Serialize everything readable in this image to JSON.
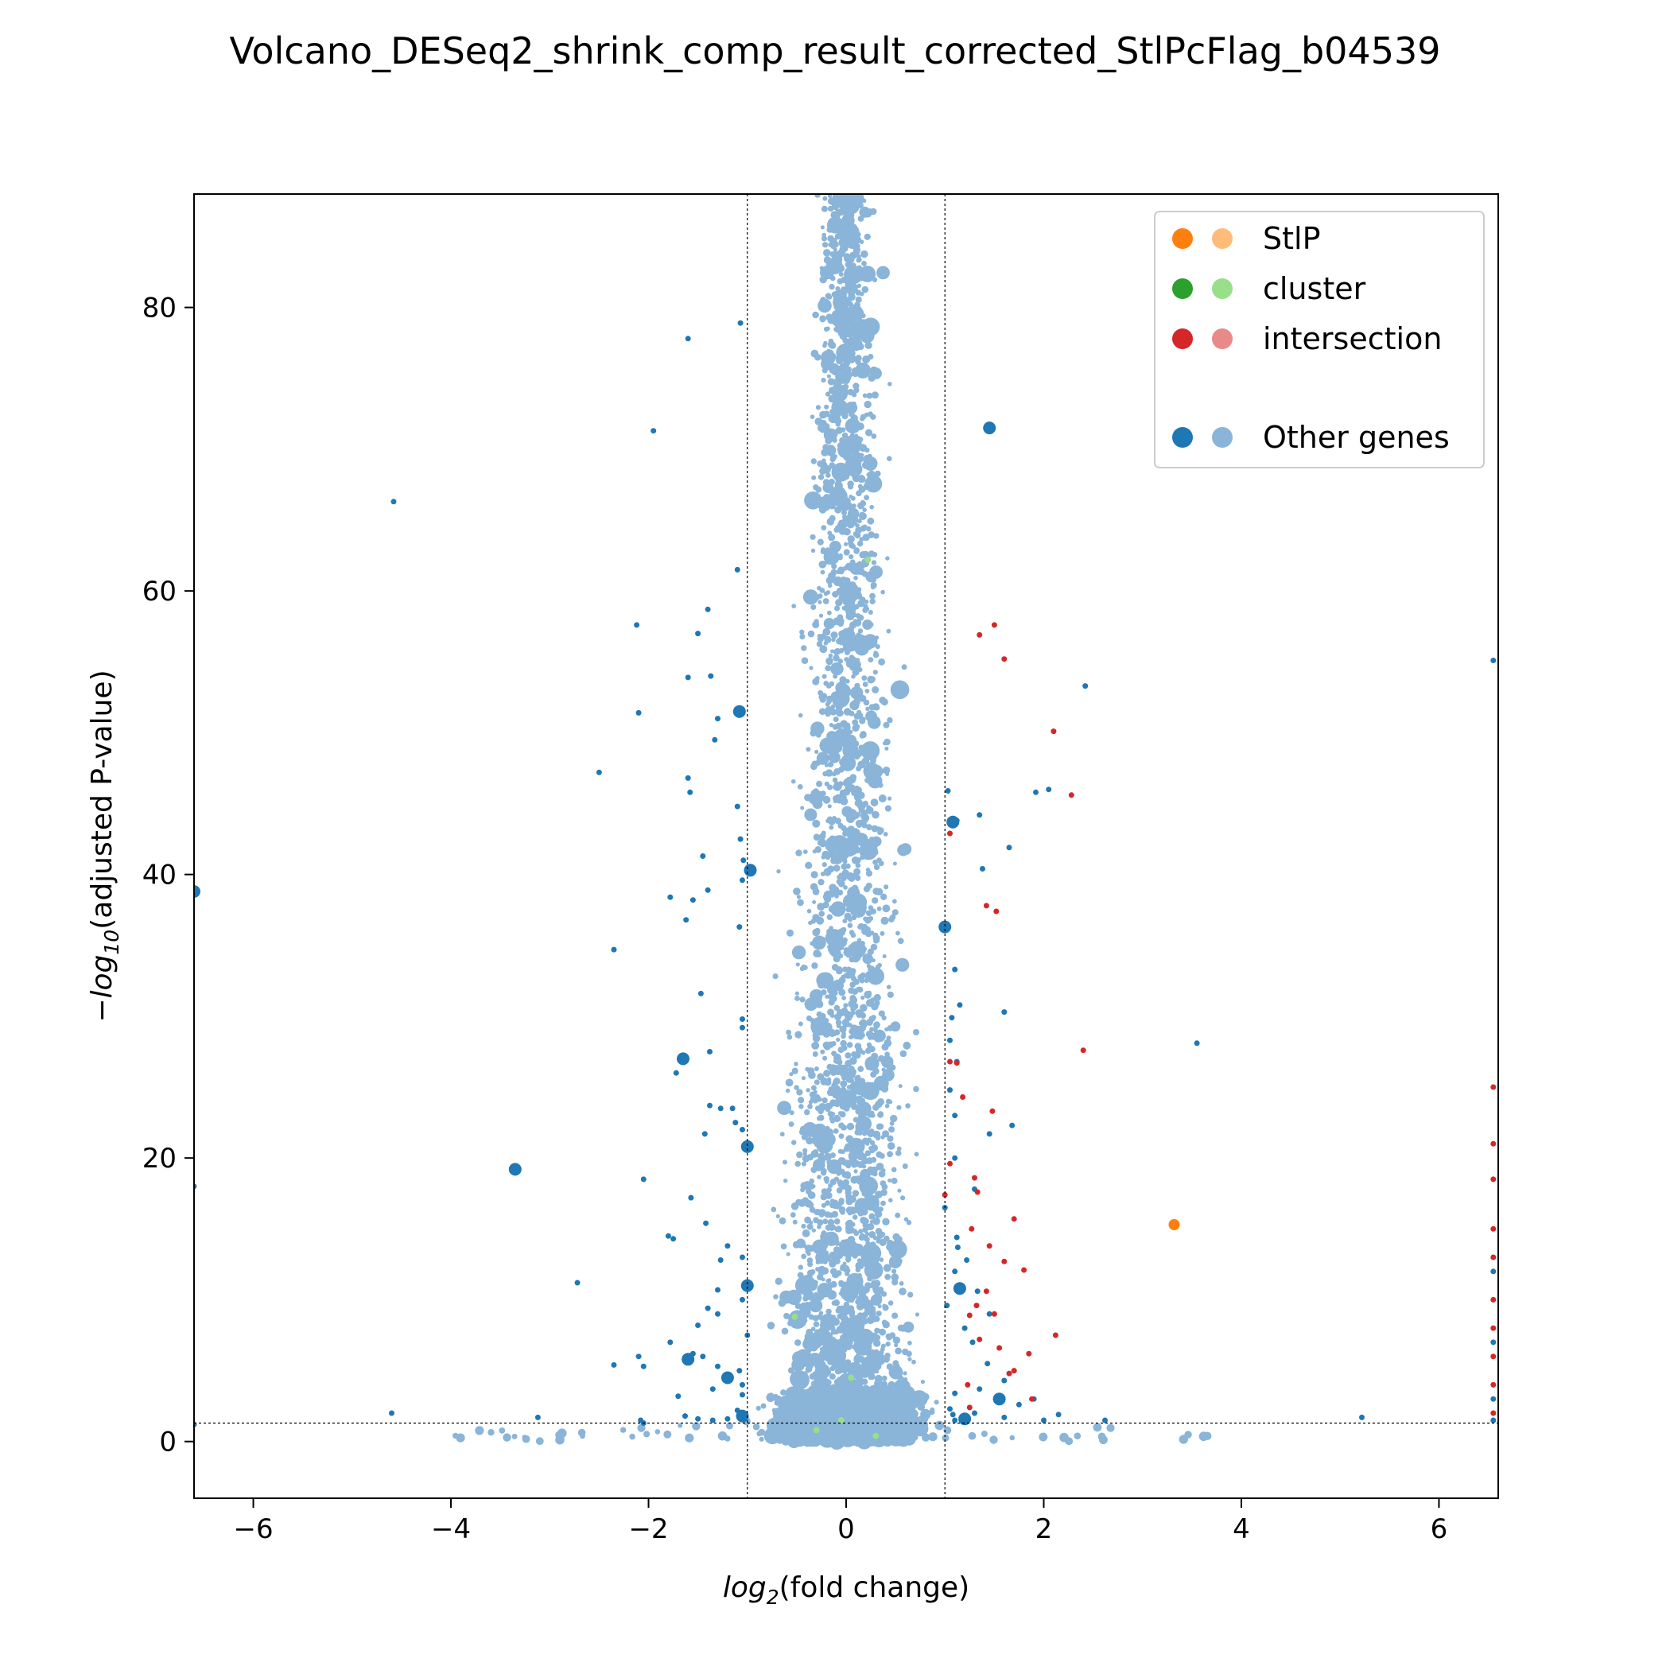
{
  "chart_data": {
    "type": "scatter",
    "title": "Volcano_DESeq2_shrink_comp_result_corrected_StlPcFlag_b04539",
    "xlabel_base": "log",
    "xlabel_sub": "2",
    "xlabel_rest": "(fold change)",
    "ylabel_prefix": "−log",
    "ylabel_sub": "10",
    "ylabel_rest": "(adjusted P-value)",
    "xlim": [
      -6.6,
      6.6
    ],
    "ylim": [
      -4,
      88
    ],
    "x_ticks": [
      -6,
      -4,
      -2,
      0,
      2,
      4,
      6
    ],
    "x_tick_labels": [
      "−6",
      "−4",
      "−2",
      "0",
      "2",
      "4",
      "6"
    ],
    "y_ticks": [
      0,
      20,
      40,
      60,
      80
    ],
    "y_tick_labels": [
      "0",
      "20",
      "40",
      "60",
      "80"
    ],
    "grid": false,
    "thresholds": {
      "fold_change_lines": [
        -1,
        1
      ],
      "pvalue_line": 1.3
    },
    "colors": {
      "StlP": [
        "#ff7f0e",
        "#ffbb78"
      ],
      "cluster": [
        "#2ca02c",
        "#98df8a"
      ],
      "intersection": [
        "#d62728",
        "#e88a8a"
      ],
      "other": [
        "#1f77b4",
        "#8ab4d8"
      ]
    },
    "legend": {
      "position": "top-right",
      "entries": [
        "StlP",
        "cluster",
        "intersection",
        "Other genes"
      ]
    },
    "series": [
      {
        "name": "StlP",
        "points": [
          [
            3.32,
            15.3
          ]
        ]
      },
      {
        "name": "cluster",
        "points": [
          [
            0.22,
            62.2
          ],
          [
            -0.52,
            8.8
          ],
          [
            0.05,
            4.5
          ],
          [
            -0.3,
            0.8
          ],
          [
            0.3,
            0.4
          ],
          [
            -0.05,
            1.5
          ]
        ]
      },
      {
        "name": "intersection",
        "points": [
          [
            1.35,
            56.9
          ],
          [
            1.5,
            57.6
          ],
          [
            1.6,
            55.2
          ],
          [
            2.1,
            50.1
          ],
          [
            2.28,
            45.6
          ],
          [
            1.05,
            42.9
          ],
          [
            1.42,
            37.8
          ],
          [
            1.52,
            37.4
          ],
          [
            2.4,
            27.6
          ],
          [
            1.05,
            26.8
          ],
          [
            1.12,
            26.7
          ],
          [
            1.18,
            24.3
          ],
          [
            1.48,
            23.3
          ],
          [
            1.05,
            19.6
          ],
          [
            1.3,
            18.6
          ],
          [
            1.0,
            17.4
          ],
          [
            1.33,
            17.6
          ],
          [
            1.7,
            15.7
          ],
          [
            1.27,
            15.0
          ],
          [
            1.45,
            13.8
          ],
          [
            1.6,
            12.7
          ],
          [
            1.8,
            12.1
          ],
          [
            1.42,
            10.6
          ],
          [
            1.32,
            9.6
          ],
          [
            1.5,
            9.0
          ],
          [
            1.25,
            8.9
          ],
          [
            1.35,
            7.2
          ],
          [
            1.55,
            6.6
          ],
          [
            2.12,
            7.5
          ],
          [
            1.85,
            6.2
          ],
          [
            1.7,
            5.0
          ],
          [
            1.88,
            3.0
          ],
          [
            1.25,
            2.4
          ],
          [
            1.65,
            4.8
          ],
          [
            1.23,
            4.0
          ],
          [
            6.55,
            25.0
          ],
          [
            6.55,
            21.0
          ],
          [
            6.55,
            18.5
          ],
          [
            6.55,
            15.0
          ],
          [
            6.55,
            13.0
          ],
          [
            6.55,
            10.0
          ],
          [
            6.55,
            8.0
          ],
          [
            6.55,
            6.0
          ],
          [
            6.55,
            4.0
          ],
          [
            6.55,
            2.0
          ]
        ]
      },
      {
        "name": "Other genes",
        "points": [
          [
            -4.58,
            66.3
          ],
          [
            -1.95,
            71.3
          ],
          [
            -1.07,
            78.9
          ],
          [
            -1.6,
            77.8
          ],
          [
            1.45,
            71.5
          ],
          [
            -2.12,
            57.6
          ],
          [
            -2.1,
            51.4
          ],
          [
            -2.5,
            47.2
          ],
          [
            -1.5,
            57.0
          ],
          [
            -1.4,
            58.7
          ],
          [
            -1.37,
            54.0
          ],
          [
            -1.1,
            61.5
          ],
          [
            -1.6,
            53.9
          ],
          [
            -1.08,
            51.5
          ],
          [
            -1.33,
            49.5
          ],
          [
            -1.6,
            46.8
          ],
          [
            -1.58,
            45.8
          ],
          [
            -1.3,
            51.0
          ],
          [
            2.42,
            53.3
          ],
          [
            1.92,
            45.8
          ],
          [
            2.05,
            46.0
          ],
          [
            1.03,
            45.9
          ],
          [
            1.08,
            43.7
          ],
          [
            1.12,
            43.8
          ],
          [
            1.35,
            44.2
          ],
          [
            1.38,
            40.4
          ],
          [
            1.65,
            41.9
          ],
          [
            -1.07,
            42.5
          ],
          [
            -1.45,
            41.3
          ],
          [
            -1.1,
            44.8
          ],
          [
            -1.04,
            41.0
          ],
          [
            -0.97,
            40.3
          ],
          [
            -1.05,
            39.6
          ],
          [
            -1.4,
            38.9
          ],
          [
            -1.55,
            38.2
          ],
          [
            -1.78,
            38.4
          ],
          [
            -1.62,
            36.8
          ],
          [
            -1.08,
            36.3
          ],
          [
            -2.35,
            34.7
          ],
          [
            1.1,
            33.3
          ],
          [
            1.0,
            36.3
          ],
          [
            1.6,
            30.3
          ],
          [
            1.15,
            30.8
          ],
          [
            1.07,
            29.9
          ],
          [
            3.55,
            28.1
          ],
          [
            -1.47,
            31.6
          ],
          [
            -1.05,
            29.8
          ],
          [
            -1.05,
            29.2
          ],
          [
            -1.38,
            27.5
          ],
          [
            -1.65,
            27.0
          ],
          [
            -1.72,
            26.0
          ],
          [
            1.12,
            26.8
          ],
          [
            1.05,
            28.3
          ],
          [
            -1.38,
            23.7
          ],
          [
            -1.27,
            23.5
          ],
          [
            -1.15,
            23.5
          ],
          [
            -1.12,
            22.5
          ],
          [
            -1.05,
            22.0
          ],
          [
            -1.0,
            20.8
          ],
          [
            -1.43,
            21.7
          ],
          [
            1.05,
            24.8
          ],
          [
            1.1,
            23.0
          ],
          [
            1.45,
            21.7
          ],
          [
            1.68,
            22.3
          ],
          [
            1.1,
            20.0
          ],
          [
            1.3,
            17.8
          ],
          [
            1.0,
            16.5
          ],
          [
            -3.35,
            19.2
          ],
          [
            -2.05,
            18.5
          ],
          [
            -1.57,
            17.2
          ],
          [
            -1.42,
            15.4
          ],
          [
            -1.8,
            14.5
          ],
          [
            -1.75,
            14.3
          ],
          [
            -1.2,
            13.8
          ],
          [
            -1.27,
            12.8
          ],
          [
            -1.05,
            13.0
          ],
          [
            -1.0,
            11.0
          ],
          [
            -1.3,
            10.7
          ],
          [
            -1.05,
            10.0
          ],
          [
            -1.4,
            9.4
          ],
          [
            -1.3,
            9.0
          ],
          [
            -1.0,
            7.5
          ],
          [
            -1.5,
            8.2
          ],
          [
            -1.45,
            6.0
          ],
          [
            -1.55,
            6.2
          ],
          [
            -1.6,
            5.8
          ],
          [
            -1.78,
            7.0
          ],
          [
            -2.35,
            5.4
          ],
          [
            -2.05,
            5.3
          ],
          [
            -2.1,
            6.0
          ],
          [
            -2.72,
            11.2
          ],
          [
            -1.3,
            5.3
          ],
          [
            -1.08,
            5.0
          ],
          [
            -1.05,
            4.0
          ],
          [
            -1.2,
            4.5
          ],
          [
            -1.35,
            3.7
          ],
          [
            -1.05,
            3.3
          ],
          [
            -1.7,
            3.2
          ],
          [
            1.12,
            14.4
          ],
          [
            1.13,
            13.7
          ],
          [
            1.22,
            12.8
          ],
          [
            1.1,
            12.0
          ],
          [
            1.33,
            10.6
          ],
          [
            1.15,
            10.8
          ],
          [
            1.02,
            9.6
          ],
          [
            1.45,
            9.0
          ],
          [
            1.2,
            8.0
          ],
          [
            1.28,
            7.0
          ],
          [
            1.6,
            4.3
          ],
          [
            1.43,
            5.5
          ],
          [
            1.35,
            3.7
          ],
          [
            1.1,
            3.4
          ],
          [
            1.55,
            3.0
          ],
          [
            1.75,
            2.6
          ],
          [
            1.6,
            1.7
          ],
          [
            1.9,
            3.0
          ],
          [
            2.0,
            1.5
          ],
          [
            2.15,
            1.9
          ],
          [
            2.62,
            1.5
          ],
          [
            5.22,
            1.7
          ],
          [
            -4.6,
            2.0
          ],
          [
            -6.6,
            38.8
          ],
          [
            -6.6,
            18.0
          ],
          [
            -6.6,
            1.2
          ],
          [
            6.55,
            55.1
          ],
          [
            6.55,
            12.0
          ],
          [
            6.55,
            7.0
          ],
          [
            6.55,
            3.0
          ],
          [
            6.55,
            1.5
          ],
          [
            -3.12,
            1.7
          ],
          [
            -1.05,
            1.8
          ],
          [
            -1.2,
            1.6
          ],
          [
            -1.1,
            2.2
          ],
          [
            -1.35,
            1.5
          ],
          [
            -1.5,
            1.6
          ],
          [
            -1.63,
            1.8
          ],
          [
            -2.08,
            1.5
          ],
          [
            -2.05,
            1.3
          ],
          [
            1.08,
            1.9
          ],
          [
            1.2,
            1.6
          ],
          [
            1.3,
            2.0
          ],
          [
            1.05,
            2.3
          ],
          [
            1.1,
            1.5
          ]
        ]
      }
    ]
  }
}
